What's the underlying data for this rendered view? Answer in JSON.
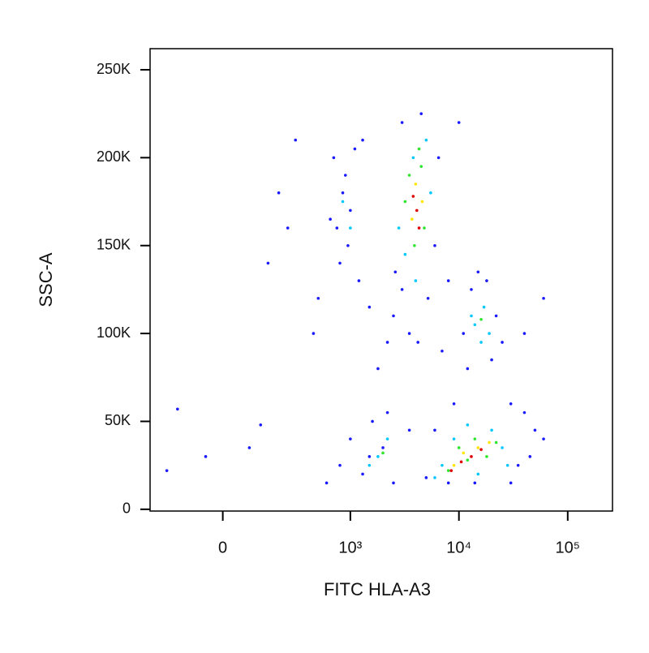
{
  "chart_data": {
    "type": "scatter",
    "x_label": "FITC HLA-A3",
    "y_label": "SSC-A",
    "xscale": "asinh",
    "xlim": [
      -300,
      258000
    ],
    "ylim": [
      -1000,
      262000
    ],
    "xticks": [
      0,
      {
        "value": 1000,
        "label": "10³"
      },
      {
        "value": 10000,
        "label": "10⁴"
      },
      {
        "value": 100000,
        "label": "10⁵"
      }
    ],
    "yticks": [
      0,
      {
        "value": 50000,
        "label": "50K"
      },
      {
        "value": 100000,
        "label": "100K"
      },
      {
        "value": 150000,
        "label": "150K"
      },
      {
        "value": 200000,
        "label": "200K"
      },
      {
        "value": 250000,
        "label": "250K"
      }
    ],
    "series": [
      {
        "color": "#1a1aff",
        "x": [
          -200,
          -150,
          -50,
          80,
          120,
          150,
          200,
          250,
          300,
          450,
          500,
          700,
          750,
          800,
          850,
          900,
          950,
          1000,
          1100,
          1200,
          650,
          1300,
          1500,
          1800,
          2200,
          2500,
          2600,
          3000,
          3500,
          4200,
          5200,
          6000,
          6500,
          3000,
          4500,
          12000,
          13000,
          15000,
          18000,
          20000,
          22000,
          25000,
          11000,
          30000,
          40000,
          50000,
          45000,
          35000,
          60000,
          30000,
          8000,
          5000,
          6000,
          9000,
          600,
          800,
          1000,
          1300,
          1600,
          2000,
          2500,
          2200,
          60000,
          40000,
          10000,
          8000,
          7000,
          1500,
          3500,
          14000
        ],
        "values": [
          22000,
          57000,
          30000,
          35000,
          48000,
          140000,
          180000,
          160000,
          210000,
          100000,
          120000,
          200000,
          160000,
          140000,
          180000,
          190000,
          150000,
          170000,
          205000,
          130000,
          165000,
          210000,
          115000,
          80000,
          95000,
          110000,
          135000,
          125000,
          100000,
          95000,
          120000,
          150000,
          200000,
          220000,
          225000,
          80000,
          125000,
          135000,
          130000,
          85000,
          110000,
          95000,
          100000,
          60000,
          55000,
          45000,
          30000,
          25000,
          40000,
          15000,
          15000,
          18000,
          45000,
          60000,
          15000,
          25000,
          40000,
          20000,
          50000,
          35000,
          15000,
          55000,
          120000,
          100000,
          220000,
          130000,
          90000,
          30000,
          45000,
          15000
        ]
      },
      {
        "color": "#00c8ff",
        "x": [
          3200,
          3800,
          5000,
          2800,
          5500,
          4000,
          850,
          1000,
          14000,
          17000,
          16000,
          19000,
          13000,
          1800,
          2200,
          1500,
          7000,
          9000,
          20000,
          25000,
          28000,
          6000,
          15000,
          12000
        ],
        "values": [
          145000,
          200000,
          210000,
          160000,
          180000,
          130000,
          175000,
          160000,
          105000,
          115000,
          95000,
          100000,
          110000,
          30000,
          40000,
          25000,
          25000,
          40000,
          45000,
          35000,
          25000,
          18000,
          20000,
          48000
        ]
      },
      {
        "color": "#2ee62e",
        "x": [
          3500,
          4500,
          3900,
          4800,
          3200,
          4300,
          16000,
          10000,
          14000,
          18000,
          22000,
          8000,
          12000,
          2000
        ],
        "values": [
          190000,
          195000,
          150000,
          160000,
          175000,
          205000,
          108000,
          35000,
          40000,
          30000,
          38000,
          22000,
          28000,
          32000
        ]
      },
      {
        "color": "#ffe600",
        "x": [
          4000,
          3700,
          4600,
          11000,
          15000,
          9000,
          19000
        ],
        "values": [
          185000,
          165000,
          175000,
          32000,
          35000,
          25000,
          38000
        ]
      },
      {
        "color": "#e00000",
        "x": [
          4100,
          3800,
          4300,
          10500,
          8500,
          13000,
          16000
        ],
        "values": [
          170000,
          178000,
          160000,
          27000,
          22000,
          30000,
          34000
        ]
      }
    ]
  }
}
